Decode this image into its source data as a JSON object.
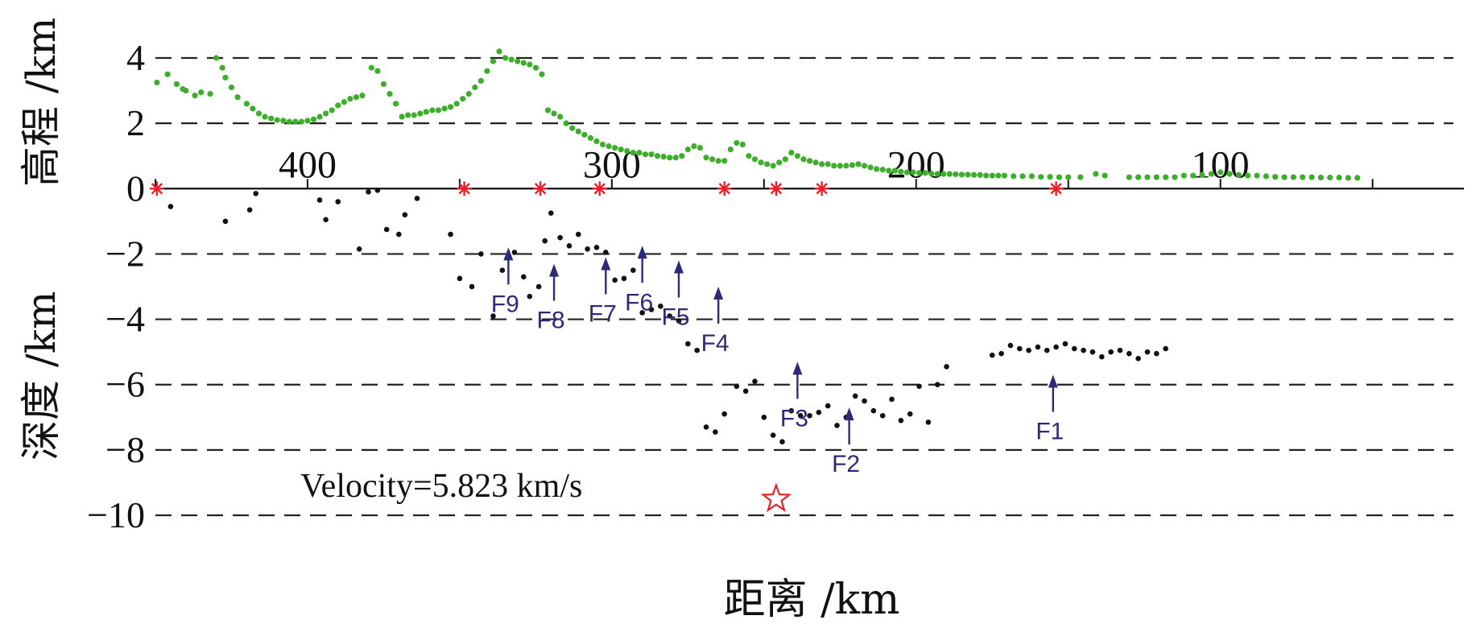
{
  "chart_data": {
    "type": "scatter",
    "title": "",
    "xlabel": "距离 /km",
    "ylabel_upper": "高程 /km",
    "ylabel_lower": "深度 /km",
    "annotation": "Velocity=5.823 km/s",
    "xlim": [
      450,
      20
    ],
    "x_ticks": [
      400,
      300,
      200,
      100
    ],
    "ylim": [
      -10,
      4
    ],
    "y_ticks": [
      4,
      2,
      0,
      -2,
      -4,
      -6,
      -8,
      -10
    ],
    "y_tick_labels": [
      "4",
      "2",
      "0",
      "−2",
      "−4",
      "−6",
      "−8",
      "−10"
    ],
    "grid": "dashed horizontal lines",
    "colors": {
      "elevation": "#3dae2b",
      "depth": "#111111",
      "stations": "#e8202a",
      "epicenter": "#e8202a",
      "faults": "#2e2a7a",
      "axis": "#111111"
    },
    "series": [
      {
        "kind": "elevation",
        "points": [
          [
            449.5,
            3.25
          ],
          [
            446,
            3.5
          ],
          [
            443,
            3.2
          ],
          [
            441,
            3.05
          ],
          [
            440,
            3.0
          ],
          [
            437,
            2.85
          ],
          [
            435,
            2.95
          ],
          [
            432,
            2.9
          ],
          [
            430,
            4.0
          ],
          [
            428,
            3.7
          ],
          [
            427,
            3.4
          ],
          [
            425,
            3.1
          ],
          [
            423,
            2.8
          ],
          [
            420,
            2.6
          ],
          [
            418,
            2.45
          ],
          [
            416,
            2.3
          ],
          [
            414,
            2.2
          ],
          [
            412,
            2.15
          ],
          [
            410,
            2.1
          ],
          [
            408,
            2.08
          ],
          [
            406,
            2.05
          ],
          [
            404,
            2.05
          ],
          [
            402,
            2.05
          ],
          [
            400,
            2.08
          ],
          [
            398,
            2.12
          ],
          [
            396,
            2.2
          ],
          [
            394,
            2.3
          ],
          [
            392,
            2.4
          ],
          [
            390,
            2.55
          ],
          [
            388,
            2.65
          ],
          [
            386,
            2.75
          ],
          [
            384,
            2.8
          ],
          [
            382,
            2.85
          ],
          [
            379,
            3.7
          ],
          [
            377,
            3.6
          ],
          [
            375,
            3.2
          ],
          [
            373,
            2.9
          ],
          [
            371,
            2.6
          ],
          [
            369,
            2.2
          ],
          [
            367,
            2.25
          ],
          [
            365,
            2.25
          ],
          [
            363,
            2.3
          ],
          [
            361,
            2.35
          ],
          [
            359,
            2.4
          ],
          [
            357,
            2.4
          ],
          [
            355,
            2.45
          ],
          [
            353,
            2.5
          ],
          [
            351,
            2.6
          ],
          [
            349,
            2.75
          ],
          [
            347,
            2.9
          ],
          [
            345,
            3.1
          ],
          [
            343,
            3.3
          ],
          [
            341,
            3.6
          ],
          [
            339,
            3.9
          ],
          [
            337,
            4.2
          ],
          [
            335,
            4.0
          ],
          [
            333,
            3.95
          ],
          [
            331,
            3.9
          ],
          [
            329,
            3.85
          ],
          [
            327,
            3.8
          ],
          [
            325,
            3.7
          ],
          [
            323,
            3.5
          ],
          [
            321,
            2.4
          ],
          [
            319,
            2.3
          ],
          [
            317,
            2.2
          ],
          [
            315,
            2.0
          ],
          [
            313,
            1.85
          ],
          [
            311,
            1.75
          ],
          [
            309,
            1.65
          ],
          [
            307,
            1.55
          ],
          [
            305,
            1.45
          ],
          [
            303,
            1.35
          ],
          [
            301,
            1.3
          ],
          [
            299,
            1.25
          ],
          [
            297,
            1.2
          ],
          [
            295,
            1.15
          ],
          [
            293,
            1.1
          ],
          [
            291,
            1.1
          ],
          [
            289,
            1.05
          ],
          [
            287,
            1.05
          ],
          [
            285,
            1.0
          ],
          [
            283,
            0.98
          ],
          [
            281,
            0.95
          ],
          [
            279,
            0.95
          ],
          [
            277,
            1.0
          ],
          [
            275,
            1.2
          ],
          [
            273,
            1.3
          ],
          [
            271,
            1.25
          ],
          [
            269,
            0.95
          ],
          [
            267,
            0.9
          ],
          [
            265,
            0.85
          ],
          [
            263,
            0.85
          ],
          [
            261,
            1.2
          ],
          [
            259,
            1.4
          ],
          [
            257,
            1.35
          ],
          [
            255,
            1.0
          ],
          [
            253,
            0.9
          ],
          [
            251,
            0.8
          ],
          [
            249,
            0.75
          ],
          [
            247,
            0.7
          ],
          [
            245,
            0.8
          ],
          [
            243,
            0.9
          ],
          [
            241,
            1.1
          ],
          [
            239,
            1.0
          ],
          [
            237,
            0.9
          ],
          [
            235,
            0.85
          ],
          [
            233,
            0.8
          ],
          [
            231,
            0.75
          ],
          [
            229,
            0.75
          ],
          [
            227,
            0.7
          ],
          [
            225,
            0.7
          ],
          [
            223,
            0.7
          ],
          [
            221,
            0.72
          ],
          [
            219,
            0.75
          ],
          [
            217,
            0.7
          ],
          [
            215,
            0.65
          ],
          [
            213,
            0.6
          ],
          [
            211,
            0.58
          ],
          [
            209,
            0.55
          ],
          [
            207,
            0.55
          ],
          [
            205,
            0.52
          ],
          [
            203,
            0.5
          ],
          [
            201,
            0.5
          ],
          [
            199,
            0.48
          ],
          [
            197,
            0.48
          ],
          [
            195,
            0.46
          ],
          [
            193,
            0.45
          ],
          [
            191,
            0.45
          ],
          [
            189,
            0.45
          ],
          [
            187,
            0.44
          ],
          [
            185,
            0.43
          ],
          [
            183,
            0.43
          ],
          [
            181,
            0.42
          ],
          [
            179,
            0.42
          ],
          [
            177,
            0.4
          ],
          [
            175,
            0.4
          ],
          [
            173,
            0.4
          ],
          [
            171,
            0.4
          ],
          [
            168,
            0.38
          ],
          [
            165,
            0.38
          ],
          [
            162,
            0.38
          ],
          [
            159,
            0.36
          ],
          [
            156,
            0.36
          ],
          [
            153,
            0.35
          ],
          [
            150,
            0.35
          ],
          [
            146,
            0.35
          ],
          [
            141,
            0.45
          ],
          [
            138,
            0.4
          ],
          [
            130,
            0.35
          ],
          [
            127,
            0.35
          ],
          [
            124,
            0.35
          ],
          [
            121,
            0.35
          ],
          [
            118,
            0.35
          ],
          [
            115,
            0.35
          ],
          [
            112,
            0.4
          ],
          [
            109,
            0.4
          ],
          [
            106,
            0.42
          ],
          [
            103,
            0.45
          ],
          [
            100,
            0.5
          ],
          [
            97,
            0.45
          ],
          [
            94,
            0.42
          ],
          [
            91,
            0.4
          ],
          [
            88,
            0.4
          ],
          [
            85,
            0.38
          ],
          [
            82,
            0.36
          ],
          [
            79,
            0.35
          ],
          [
            76,
            0.35
          ],
          [
            73,
            0.35
          ],
          [
            70,
            0.35
          ],
          [
            67,
            0.34
          ],
          [
            64,
            0.34
          ],
          [
            61,
            0.34
          ],
          [
            58,
            0.33
          ],
          [
            55,
            0.33
          ]
        ]
      },
      {
        "kind": "depth",
        "points": [
          [
            445,
            -0.55
          ],
          [
            427,
            -1.0
          ],
          [
            419,
            -0.65
          ],
          [
            417,
            -0.15
          ],
          [
            396,
            -0.35
          ],
          [
            394,
            -0.95
          ],
          [
            390,
            -0.4
          ],
          [
            383,
            -1.85
          ],
          [
            380,
            -0.1
          ],
          [
            377,
            -0.05
          ],
          [
            374,
            -1.25
          ],
          [
            370,
            -1.4
          ],
          [
            368,
            -0.8
          ],
          [
            364,
            -0.3
          ],
          [
            353,
            -1.4
          ],
          [
            350,
            -2.75
          ],
          [
            346,
            -3.0
          ],
          [
            343,
            -2.0
          ],
          [
            339,
            -3.9
          ],
          [
            336,
            -2.5
          ],
          [
            332,
            -1.95
          ],
          [
            329,
            -2.7
          ],
          [
            327,
            -3.3
          ],
          [
            324,
            -3.0
          ],
          [
            322,
            -1.6
          ],
          [
            320,
            -0.75
          ],
          [
            317,
            -1.5
          ],
          [
            314,
            -1.75
          ],
          [
            311,
            -1.4
          ],
          [
            308,
            -1.85
          ],
          [
            305,
            -1.8
          ],
          [
            302,
            -1.95
          ],
          [
            299,
            -2.8
          ],
          [
            296,
            -2.75
          ],
          [
            293,
            -2.5
          ],
          [
            290,
            -3.8
          ],
          [
            287,
            -3.7
          ],
          [
            284,
            -3.6
          ],
          [
            281,
            -3.9
          ],
          [
            278,
            -4.05
          ],
          [
            275,
            -4.75
          ],
          [
            272,
            -4.95
          ],
          [
            269,
            -7.3
          ],
          [
            266,
            -7.45
          ],
          [
            263,
            -6.9
          ],
          [
            259,
            -6.05
          ],
          [
            256,
            -6.2
          ],
          [
            253,
            -5.9
          ],
          [
            250,
            -7.0
          ],
          [
            247,
            -7.55
          ],
          [
            244,
            -7.75
          ],
          [
            241,
            -6.8
          ],
          [
            238,
            -6.95
          ],
          [
            235,
            -6.95
          ],
          [
            232,
            -6.85
          ],
          [
            229,
            -6.65
          ],
          [
            226,
            -7.25
          ],
          [
            223,
            -7.0
          ],
          [
            220,
            -6.35
          ],
          [
            217,
            -6.5
          ],
          [
            214,
            -6.8
          ],
          [
            211,
            -6.95
          ],
          [
            208,
            -6.45
          ],
          [
            205,
            -7.1
          ],
          [
            202,
            -6.9
          ],
          [
            199,
            -6.05
          ],
          [
            196,
            -7.15
          ],
          [
            193,
            -6.0
          ],
          [
            190,
            -5.45
          ],
          [
            175,
            -5.1
          ],
          [
            172,
            -5.05
          ],
          [
            169,
            -4.8
          ],
          [
            166,
            -4.9
          ],
          [
            163,
            -4.95
          ],
          [
            160,
            -4.85
          ],
          [
            157,
            -4.95
          ],
          [
            154,
            -4.85
          ],
          [
            151,
            -4.75
          ],
          [
            148,
            -4.9
          ],
          [
            145,
            -4.95
          ],
          [
            142,
            -5.0
          ],
          [
            139,
            -5.15
          ],
          [
            136,
            -5.0
          ],
          [
            133,
            -4.95
          ],
          [
            130,
            -5.05
          ],
          [
            127,
            -5.2
          ],
          [
            124,
            -5.0
          ],
          [
            121,
            -5.05
          ],
          [
            118,
            -4.9
          ]
        ]
      }
    ],
    "stations_x": [
      449.5,
      348.5,
      323.5,
      304,
      263,
      246,
      231,
      154
    ],
    "epicenter": {
      "x": 246,
      "y": -9.5
    },
    "faults": [
      {
        "label": "F9",
        "x": 334,
        "y_tip": -1.8
      },
      {
        "label": "F8",
        "x": 319,
        "y_tip": -2.3
      },
      {
        "label": "F7",
        "x": 302,
        "y_tip": -2.1
      },
      {
        "label": "F6",
        "x": 290,
        "y_tip": -1.75
      },
      {
        "label": "F5",
        "x": 278,
        "y_tip": -2.2
      },
      {
        "label": "F4",
        "x": 265,
        "y_tip": -3.0
      },
      {
        "label": "F3",
        "x": 239,
        "y_tip": -5.3
      },
      {
        "label": "F2",
        "x": 222,
        "y_tip": -6.7
      },
      {
        "label": "F1",
        "x": 155,
        "y_tip": -5.7
      }
    ]
  }
}
